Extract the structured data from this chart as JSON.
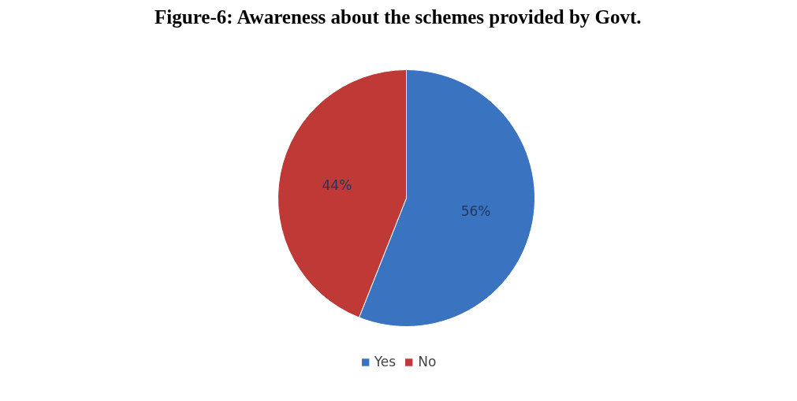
{
  "chart_data": {
    "type": "pie",
    "title": "Figure-6: Awareness about the schemes provided by Govt.",
    "categories": [
      "Yes",
      "No"
    ],
    "values": [
      56,
      44
    ],
    "colors": [
      "#3a73bf",
      "#bf3a36"
    ],
    "value_labels": [
      "56%",
      "44%"
    ],
    "legend": "bottom"
  }
}
